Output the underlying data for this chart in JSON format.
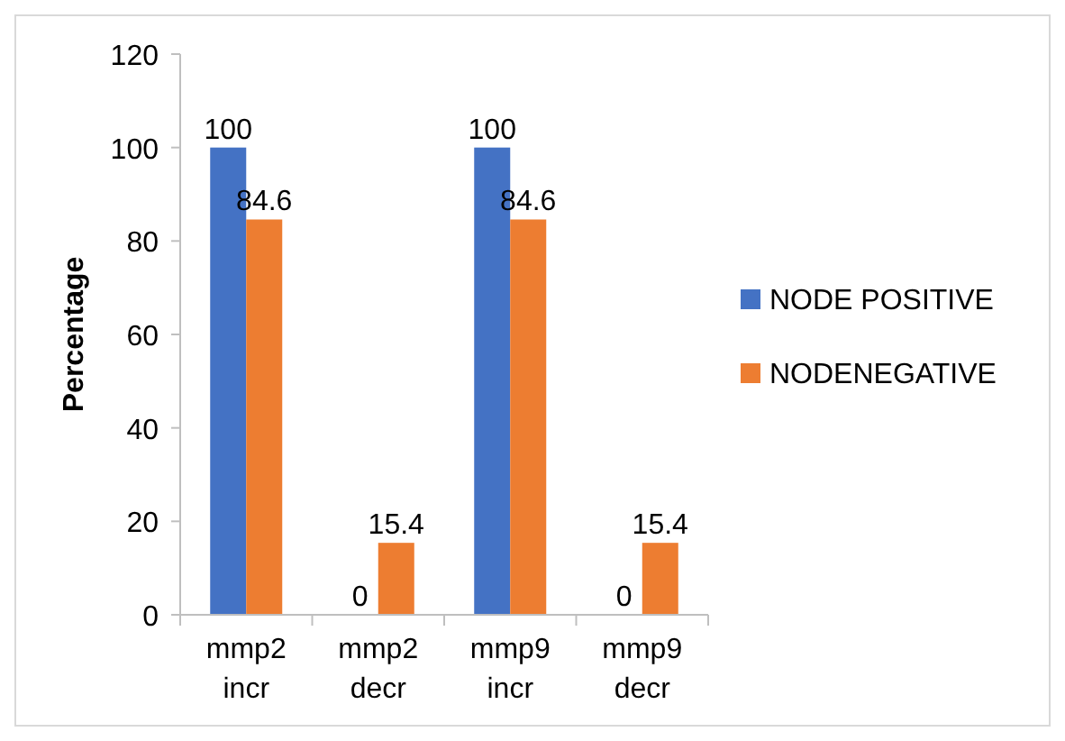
{
  "chart_data": {
    "type": "bar",
    "ylabel": "Percentage",
    "categories": [
      "mmp2 incr",
      "mmp2 decr",
      "mmp9 incr",
      "mmp9 decr"
    ],
    "series": [
      {
        "name": "NODE POSITIVE",
        "color": "#4472c4",
        "values": [
          100,
          0,
          100,
          0
        ]
      },
      {
        "name": "NODENEGATIVE",
        "color": "#ed7d31",
        "values": [
          84.6,
          15.4,
          84.6,
          15.4
        ]
      }
    ],
    "ylim": [
      0,
      120
    ],
    "yticks": [
      0,
      20,
      40,
      60,
      80,
      100,
      120
    ],
    "grid": false,
    "legend": "right",
    "data_labels": true
  }
}
